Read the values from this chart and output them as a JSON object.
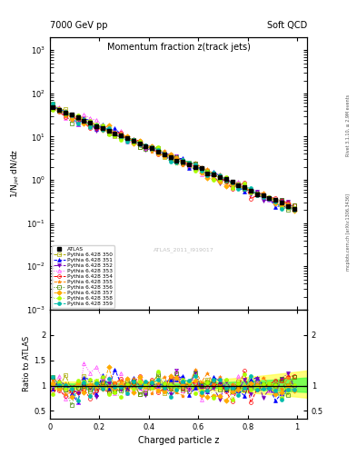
{
  "title_main": "Momentum fraction z(track jets)",
  "header_left": "7000 GeV pp",
  "header_right": "Soft QCD",
  "ylabel_main": "1/N$_{jet}$ dN/dz",
  "ylabel_ratio": "Ratio to ATLAS",
  "xlabel": "Charged particle z",
  "right_label_top": "Rivet 3.1.10, ≥ 2.9M events",
  "right_label_bottom": "mcplots.cern.ch [arXiv:1306.3436]",
  "watermark": "ATLAS_2011_I919017",
  "ylim_main": [
    0.001,
    2000.0
  ],
  "ylim_ratio": [
    0.35,
    2.5
  ],
  "xlim": [
    0.0,
    1.04
  ],
  "series_labels": [
    "ATLAS",
    "Pythia 6.428 350",
    "Pythia 6.428 351",
    "Pythia 6.428 352",
    "Pythia 6.428 353",
    "Pythia 6.428 354",
    "Pythia 6.428 355",
    "Pythia 6.428 356",
    "Pythia 6.428 357",
    "Pythia 6.428 358",
    "Pythia 6.428 359"
  ],
  "colors": [
    "#000000",
    "#aaaa00",
    "#0000ff",
    "#7700bb",
    "#ff44ff",
    "#ff0000",
    "#ff8800",
    "#448800",
    "#ffaa00",
    "#aaff00",
    "#00bbaa"
  ],
  "markers": [
    "s",
    "s",
    "^",
    "v",
    "^",
    "o",
    "*",
    "s",
    "D",
    "o",
    "o"
  ],
  "lstyles": [
    "none",
    "--",
    "--",
    "-.",
    ":",
    "--",
    "--",
    ":",
    "--",
    ":",
    "--"
  ],
  "filled": [
    true,
    false,
    true,
    true,
    false,
    false,
    true,
    false,
    true,
    true,
    true
  ],
  "band_color_yellow": "#ffff44",
  "band_color_green": "#44ff44"
}
